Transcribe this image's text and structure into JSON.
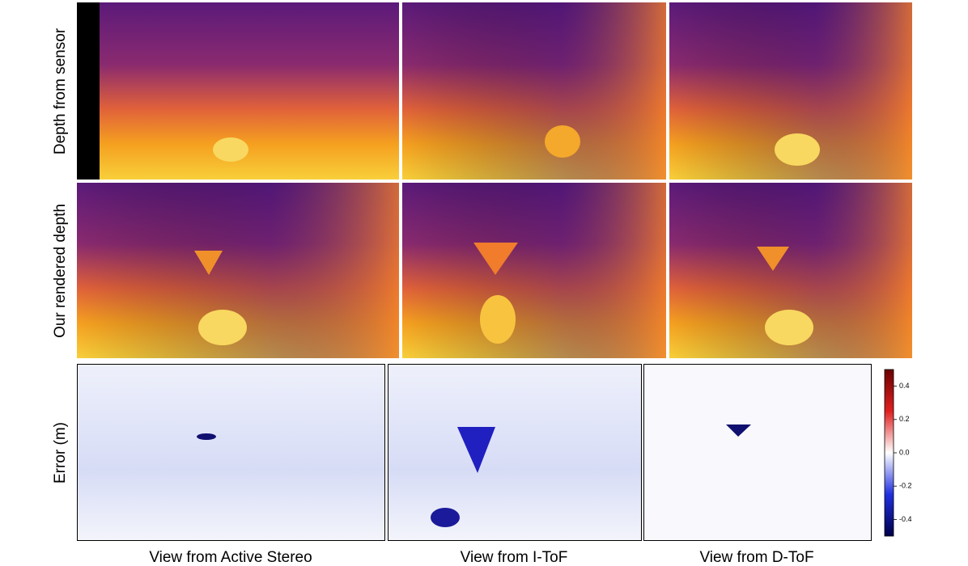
{
  "row_labels": [
    "Depth from sensor",
    "Our rendered depth",
    "Error (m)"
  ],
  "column_labels": [
    "View from Active Stereo",
    "View from I-ToF",
    "View from D-ToF"
  ],
  "colorbar": {
    "ylim": [
      -0.5,
      0.5
    ],
    "ticks": [
      0.4,
      0.2,
      {
        "value": 0,
        "label": "0.0"
      },
      -0.2,
      -0.4
    ]
  }
}
